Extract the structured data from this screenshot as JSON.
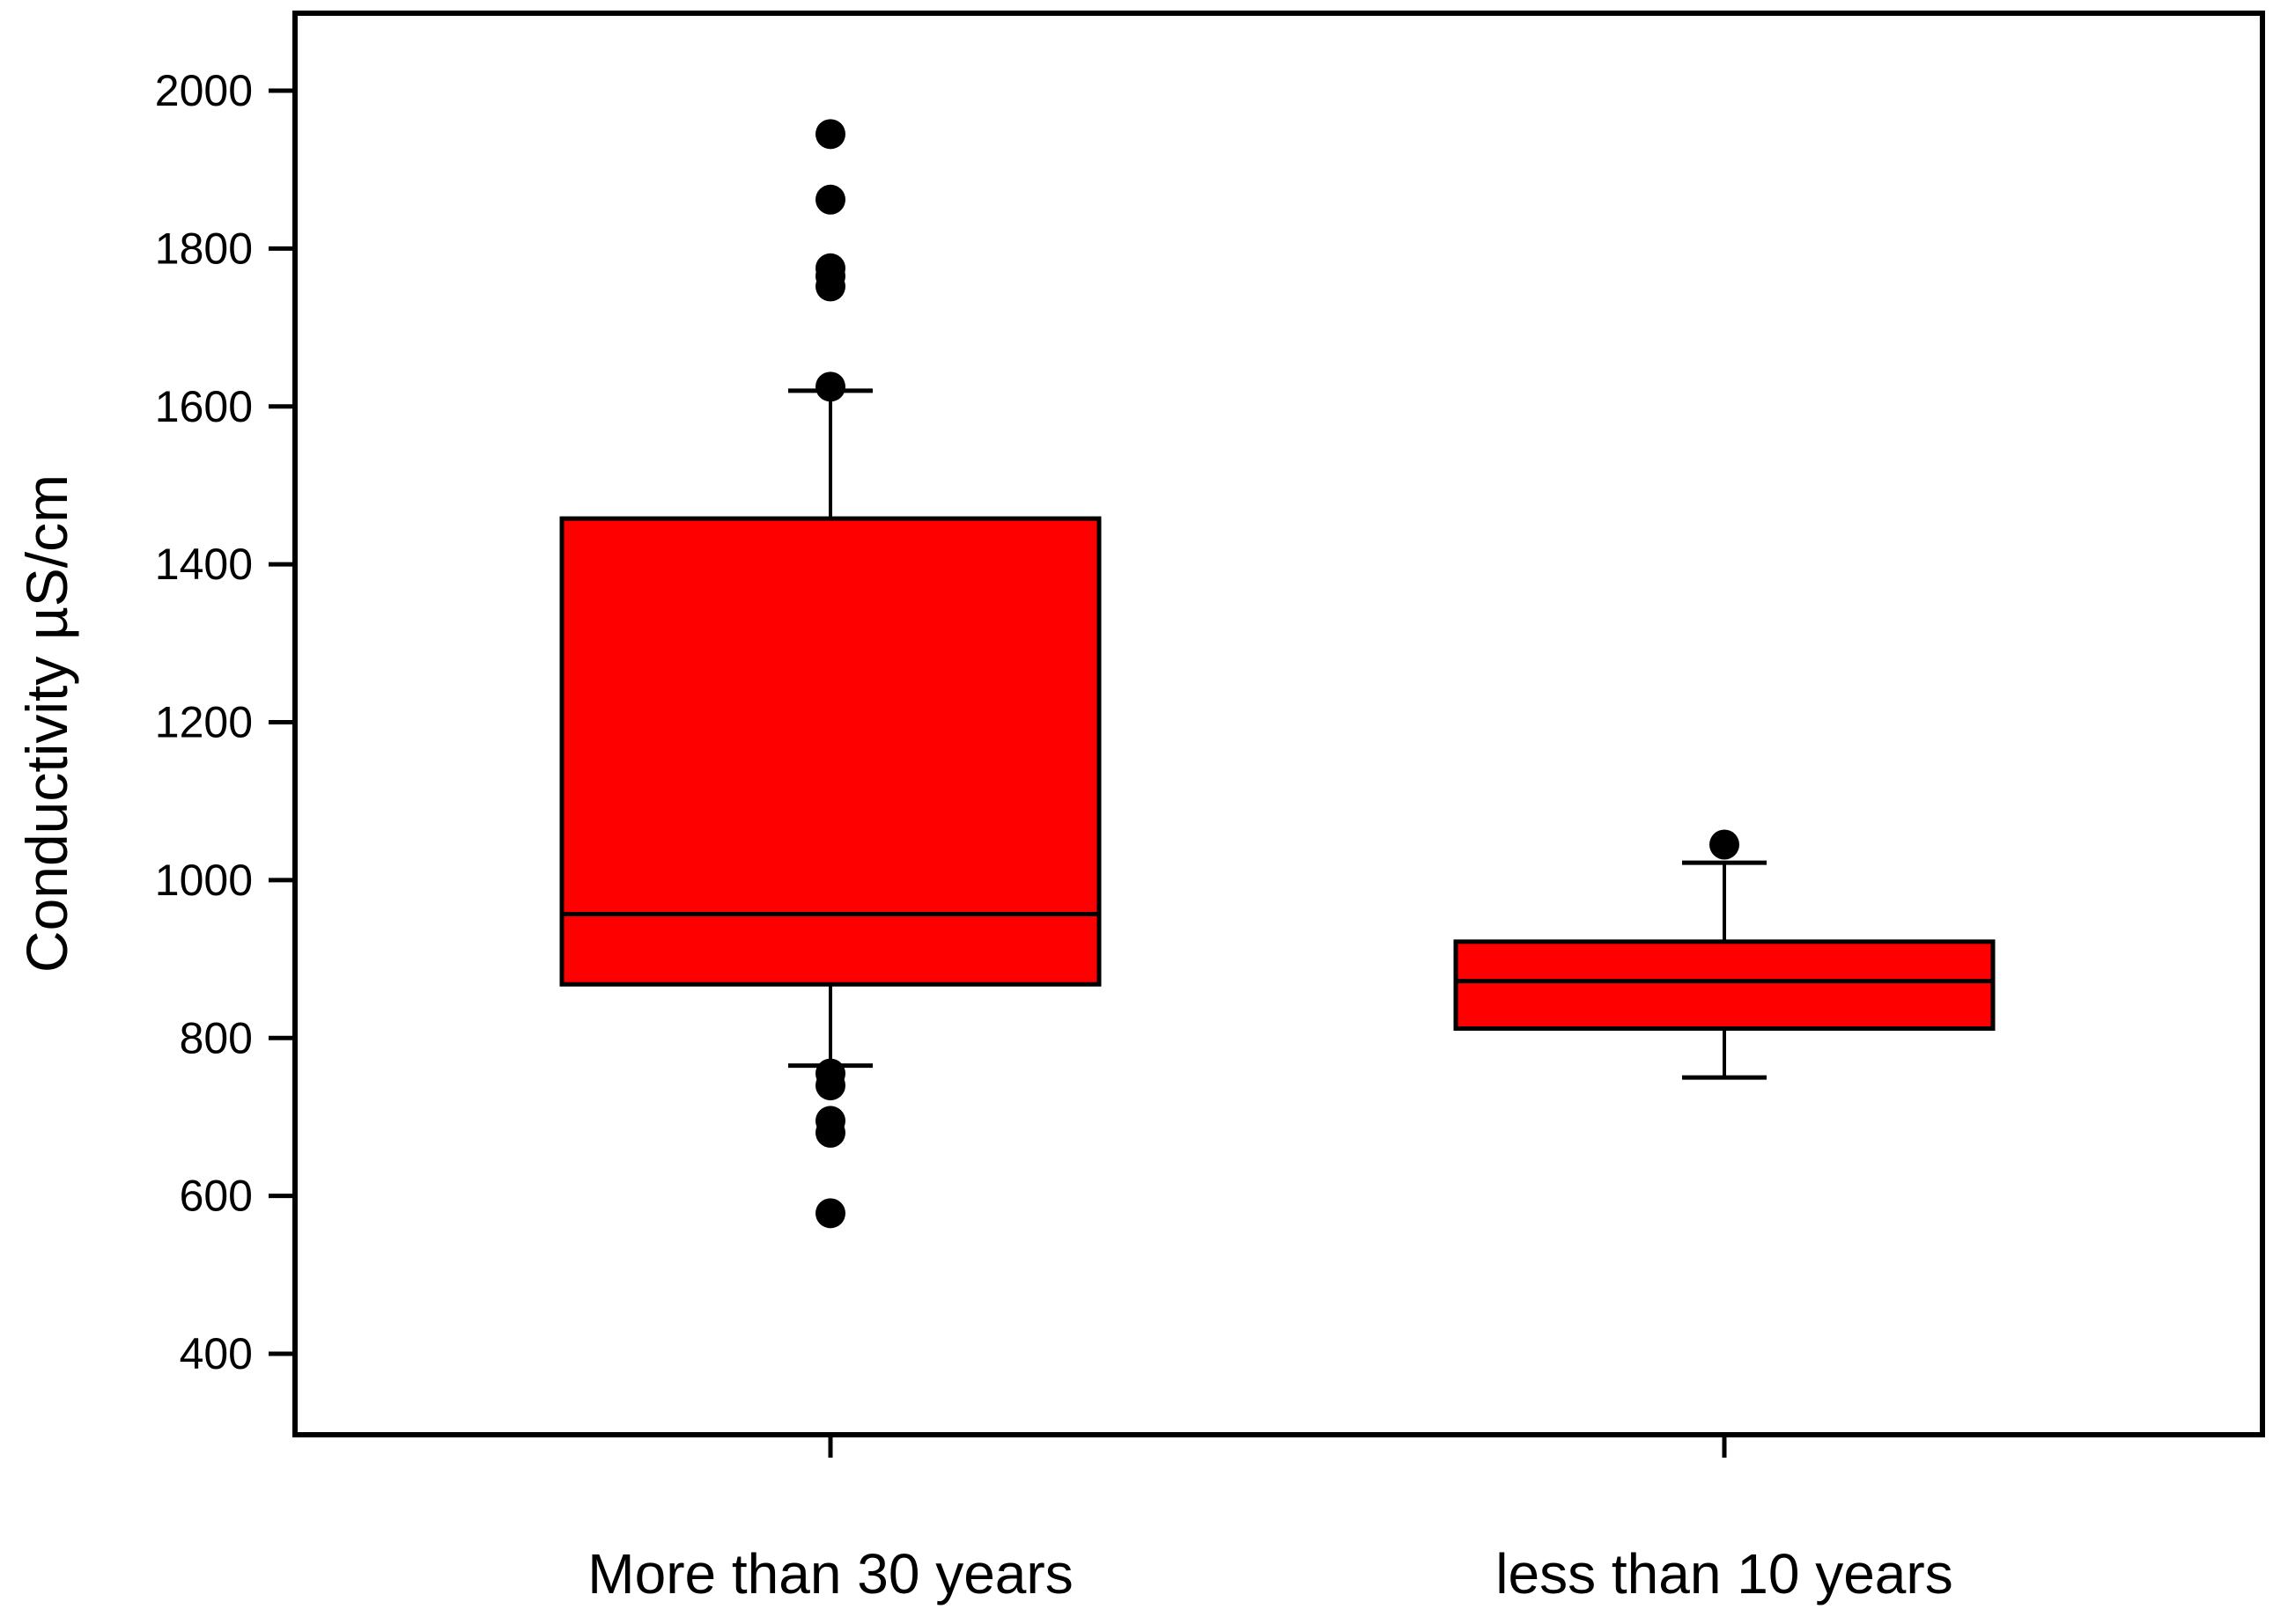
{
  "chart_data": {
    "type": "box",
    "ylabel": "Conductivity µS/cm",
    "xlabel": "",
    "ylim": [
      300,
      2100
    ],
    "yticks": [
      400,
      600,
      800,
      1000,
      1200,
      1400,
      1600,
      1800,
      2000
    ],
    "ytick_labels": [
      "400",
      "600",
      "800",
      "1000",
      "1200",
      "1400",
      "1600",
      "1800",
      "2000"
    ],
    "categories": [
      "More than 30 years",
      "less than 10 years"
    ],
    "box_color": "#ff0000",
    "outlier_color": "#000000",
    "boxes": [
      {
        "category": "More than 30 years",
        "whisker_low": 765,
        "q1": 868,
        "median": 957,
        "q3": 1458,
        "whisker_high": 1620,
        "outliers": [
          1945,
          1862,
          1775,
          1765,
          1752,
          1625,
          755,
          740,
          695,
          680,
          578
        ]
      },
      {
        "category": "less than 10 years",
        "whisker_low": 750,
        "q1": 812,
        "median": 872,
        "q3": 922,
        "whisker_high": 1022,
        "outliers": [
          1045
        ]
      }
    ],
    "grid": false,
    "legend": "none"
  }
}
